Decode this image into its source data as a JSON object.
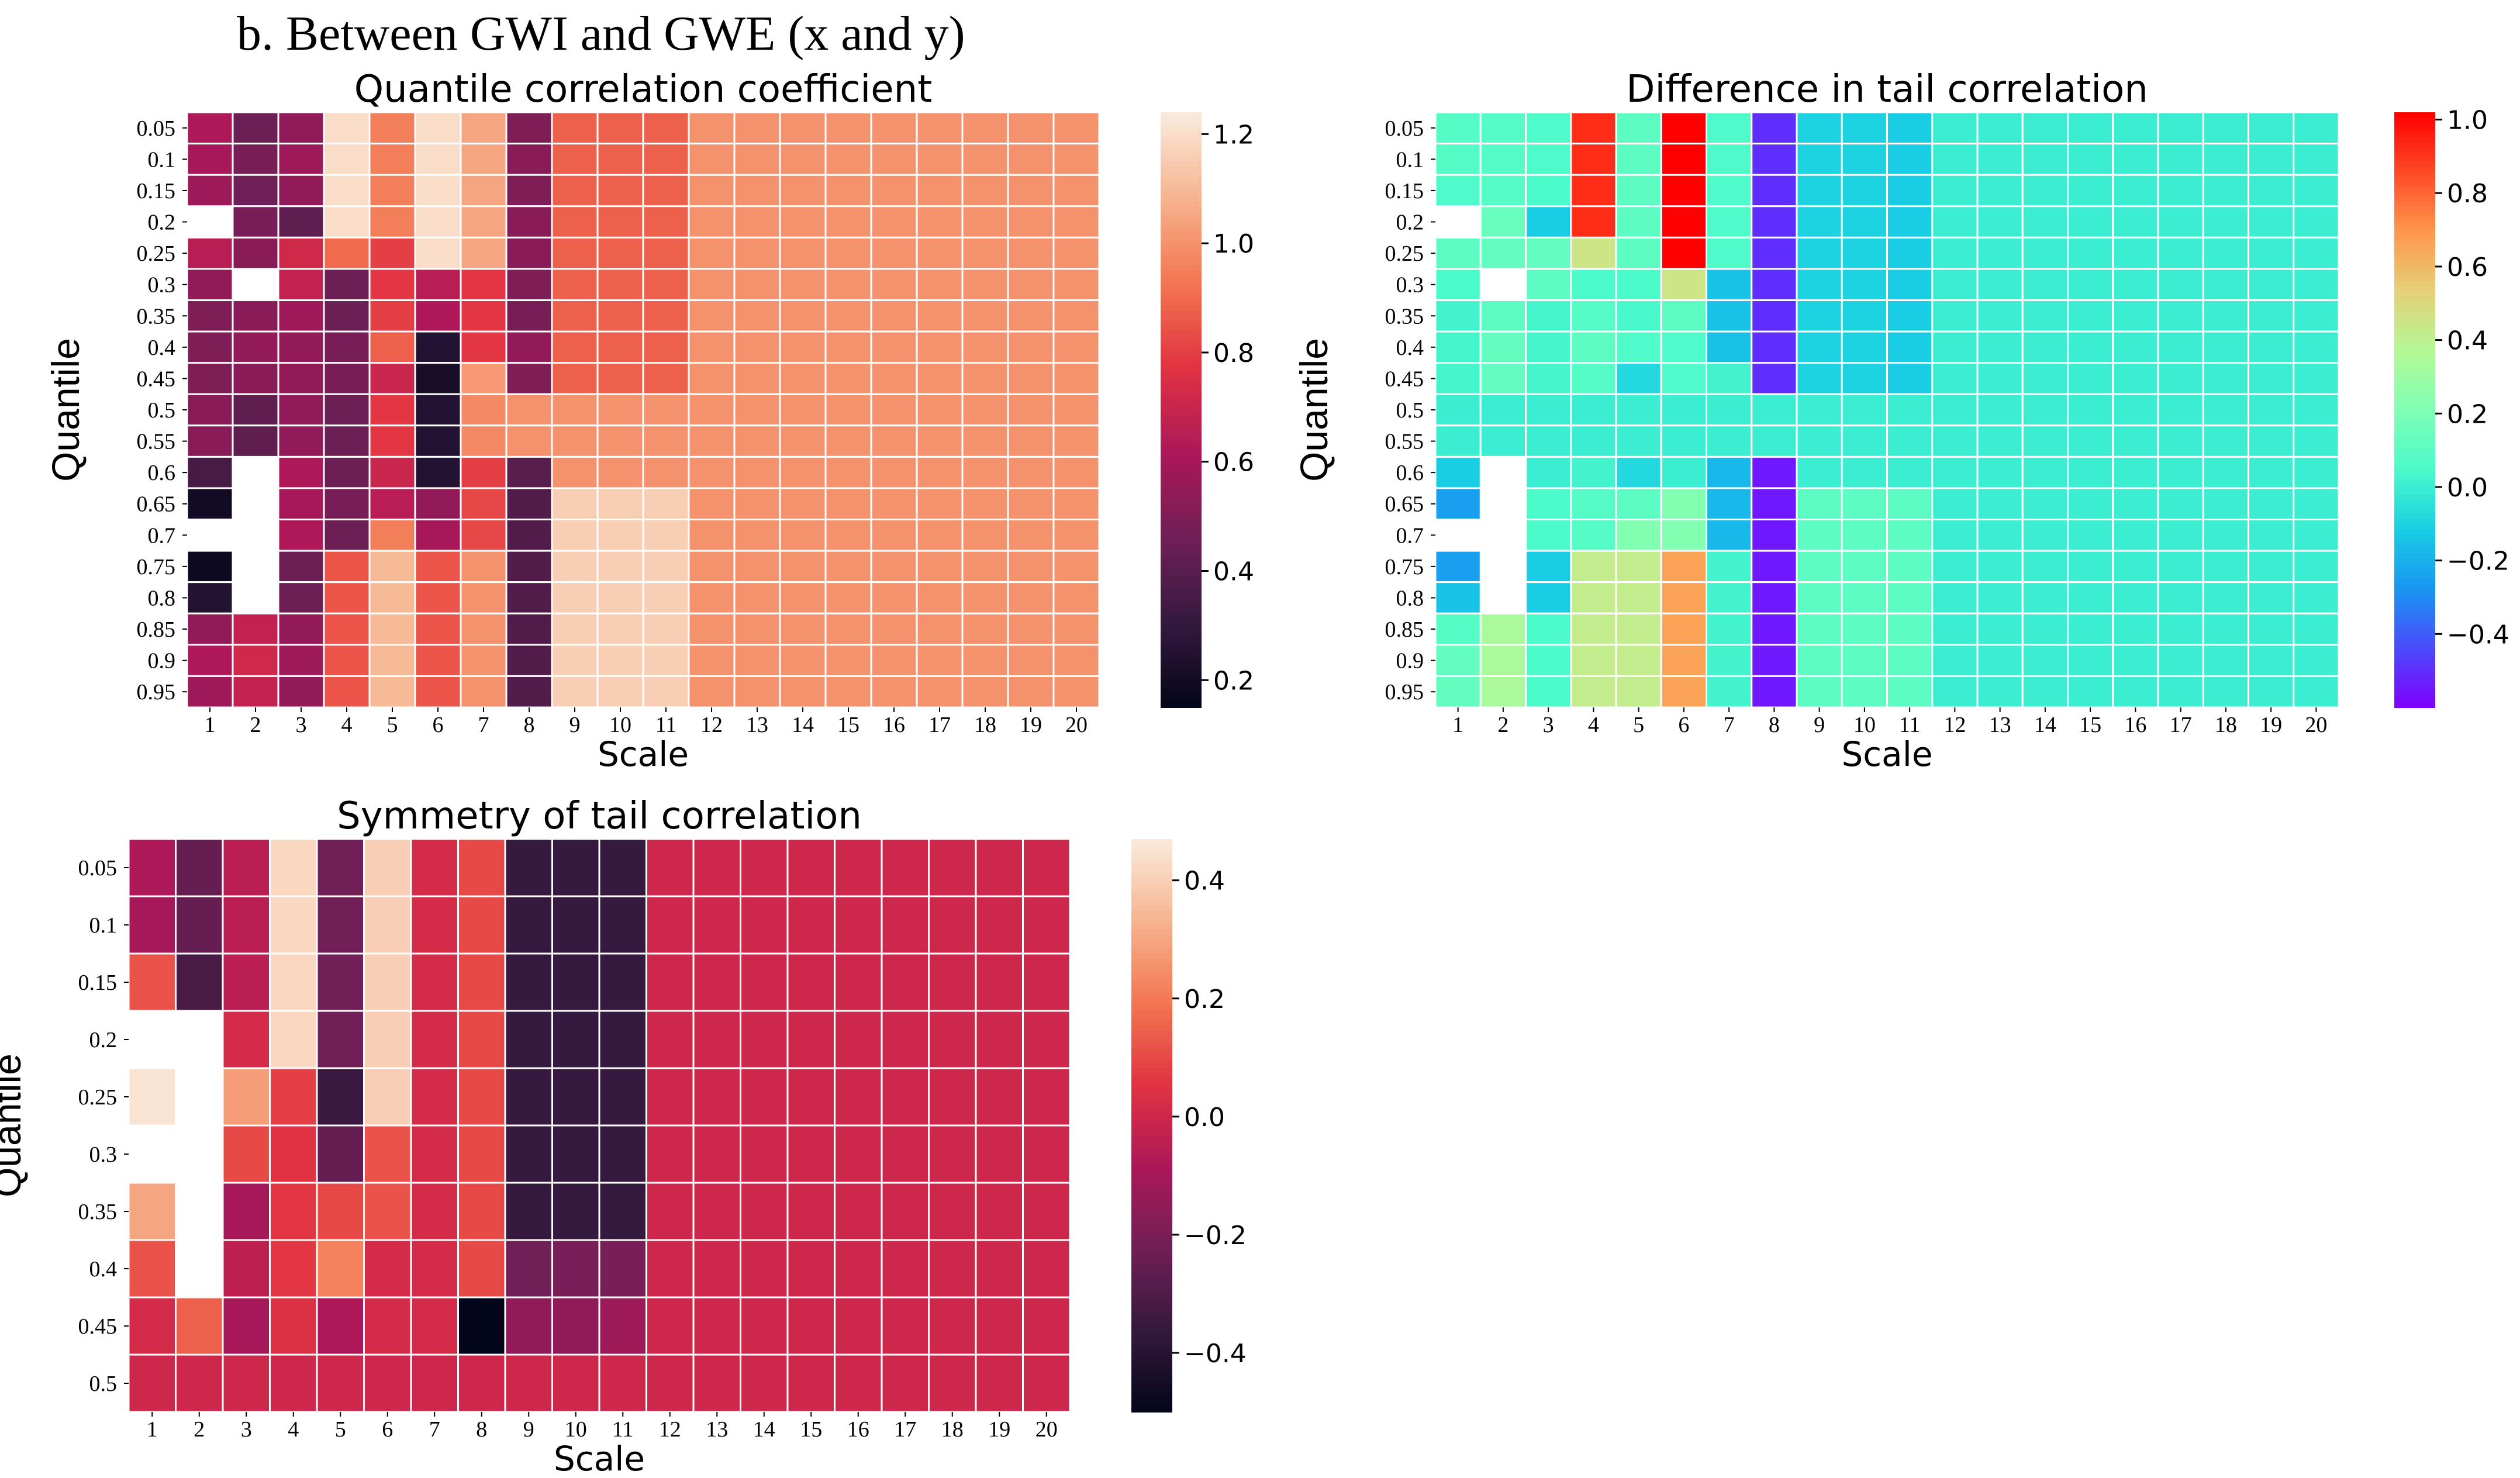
{
  "figure_title": "b. Between GWI and GWE (x and y)",
  "colormaps": {
    "rocket": [
      "#03051a",
      "#35193e",
      "#701f57",
      "#ad1759",
      "#e13342",
      "#f37651",
      "#f6b48f",
      "#faebdd"
    ],
    "rainbow": [
      "#8000ff",
      "#4a4bfc",
      "#1996f3",
      "#19cfe3",
      "#4bfbca",
      "#80ffb4",
      "#b4f995",
      "#e6cf77",
      "#ff964c",
      "#ff4826",
      "#ff0000"
    ]
  },
  "chart_data": [
    {
      "type": "heatmap",
      "title": "Quantile correlation coefficient",
      "xlabel": "Scale",
      "ylabel": "Quantile",
      "x": [
        "1",
        "2",
        "3",
        "4",
        "5",
        "6",
        "7",
        "8",
        "9",
        "10",
        "11",
        "12",
        "13",
        "14",
        "15",
        "16",
        "17",
        "18",
        "19",
        "20"
      ],
      "y": [
        "0.05",
        "0.1",
        "0.15",
        "0.2",
        "0.25",
        "0.3",
        "0.35",
        "0.4",
        "0.45",
        "0.5",
        "0.55",
        "0.6",
        "0.65",
        "0.7",
        "0.75",
        "0.8",
        "0.85",
        "0.9",
        "0.95"
      ],
      "colormap": "rocket",
      "vmin": 0.15,
      "vmax": 1.24,
      "colorbar_ticks": [
        0.2,
        0.4,
        0.6,
        0.8,
        1.0,
        1.2
      ],
      "values": [
        [
          0.62,
          0.45,
          0.55,
          1.2,
          0.95,
          1.2,
          1.05,
          0.5,
          0.88,
          0.88,
          0.88,
          1.0,
          1.0,
          1.0,
          1.0,
          1.0,
          1.0,
          1.0,
          1.0,
          1.0
        ],
        [
          0.6,
          0.48,
          0.58,
          1.2,
          0.95,
          1.2,
          1.05,
          0.52,
          0.88,
          0.88,
          0.88,
          1.0,
          1.0,
          1.0,
          1.0,
          1.0,
          1.0,
          1.0,
          1.0,
          1.0
        ],
        [
          0.58,
          0.46,
          0.55,
          1.2,
          0.95,
          1.2,
          1.05,
          0.5,
          0.88,
          0.88,
          0.88,
          1.0,
          1.0,
          1.0,
          1.0,
          1.0,
          1.0,
          1.0,
          1.0,
          1.0
        ],
        [
          null,
          0.48,
          0.42,
          1.2,
          0.95,
          1.2,
          1.05,
          0.52,
          0.88,
          0.88,
          0.88,
          1.0,
          1.0,
          1.0,
          1.0,
          1.0,
          1.0,
          1.0,
          1.0,
          1.0
        ],
        [
          0.65,
          0.52,
          0.72,
          0.9,
          0.8,
          1.2,
          1.05,
          0.52,
          0.88,
          0.88,
          0.88,
          1.0,
          1.0,
          1.0,
          1.0,
          1.0,
          1.0,
          1.0,
          1.0,
          1.0
        ],
        [
          0.55,
          null,
          0.68,
          0.45,
          0.78,
          0.65,
          0.78,
          0.5,
          0.88,
          0.88,
          0.88,
          1.0,
          1.0,
          1.0,
          1.0,
          1.0,
          1.0,
          1.0,
          1.0,
          1.0
        ],
        [
          0.5,
          0.52,
          0.58,
          0.45,
          0.8,
          0.62,
          0.78,
          0.48,
          0.88,
          0.88,
          0.88,
          1.0,
          1.0,
          1.0,
          1.0,
          1.0,
          1.0,
          1.0,
          1.0,
          1.0
        ],
        [
          0.5,
          0.55,
          0.55,
          0.48,
          0.88,
          0.25,
          0.78,
          0.55,
          0.88,
          0.88,
          0.88,
          1.0,
          1.0,
          1.0,
          1.0,
          1.0,
          1.0,
          1.0,
          1.0,
          1.0
        ],
        [
          0.5,
          0.52,
          0.55,
          0.48,
          0.7,
          0.22,
          1.02,
          0.5,
          0.88,
          0.88,
          0.88,
          1.0,
          1.0,
          1.0,
          1.0,
          1.0,
          1.0,
          1.0,
          1.0,
          1.0
        ],
        [
          0.52,
          0.42,
          0.55,
          0.45,
          0.78,
          0.25,
          0.98,
          1.0,
          1.0,
          1.0,
          1.0,
          1.0,
          1.0,
          1.0,
          1.0,
          1.0,
          1.0,
          1.0,
          1.0,
          1.0
        ],
        [
          0.52,
          0.42,
          0.55,
          0.45,
          0.78,
          0.25,
          0.98,
          1.0,
          1.0,
          1.0,
          1.0,
          1.0,
          1.0,
          1.0,
          1.0,
          1.0,
          1.0,
          1.0,
          1.0,
          1.0
        ],
        [
          0.35,
          null,
          0.62,
          0.45,
          0.7,
          0.25,
          0.8,
          0.4,
          1.0,
          1.0,
          1.0,
          1.0,
          1.0,
          1.0,
          1.0,
          1.0,
          1.0,
          1.0,
          1.0,
          1.0
        ],
        [
          0.2,
          null,
          0.6,
          0.48,
          0.65,
          0.55,
          0.82,
          0.38,
          1.16,
          1.16,
          1.16,
          1.0,
          1.0,
          1.0,
          1.0,
          1.0,
          1.0,
          1.0,
          1.0,
          1.0
        ],
        [
          null,
          null,
          0.62,
          0.45,
          0.95,
          0.6,
          0.82,
          0.38,
          1.16,
          1.16,
          1.16,
          1.0,
          1.0,
          1.0,
          1.0,
          1.0,
          1.0,
          1.0,
          1.0,
          1.0
        ],
        [
          0.18,
          null,
          0.45,
          0.85,
          1.1,
          0.85,
          1.0,
          0.38,
          1.16,
          1.16,
          1.16,
          1.0,
          1.0,
          1.0,
          1.0,
          1.0,
          1.0,
          1.0,
          1.0,
          1.0
        ],
        [
          0.25,
          null,
          0.45,
          0.85,
          1.1,
          0.85,
          1.0,
          0.38,
          1.16,
          1.16,
          1.16,
          1.0,
          1.0,
          1.0,
          1.0,
          1.0,
          1.0,
          1.0,
          1.0,
          1.0
        ],
        [
          0.55,
          0.68,
          0.55,
          0.85,
          1.1,
          0.85,
          1.0,
          0.38,
          1.16,
          1.16,
          1.16,
          1.0,
          1.0,
          1.0,
          1.0,
          1.0,
          1.0,
          1.0,
          1.0,
          1.0
        ],
        [
          0.62,
          0.72,
          0.58,
          0.85,
          1.1,
          0.85,
          1.0,
          0.38,
          1.16,
          1.16,
          1.16,
          1.0,
          1.0,
          1.0,
          1.0,
          1.0,
          1.0,
          1.0,
          1.0,
          1.0
        ],
        [
          0.58,
          0.68,
          0.55,
          0.85,
          1.1,
          0.85,
          1.0,
          0.38,
          1.16,
          1.16,
          1.16,
          1.0,
          1.0,
          1.0,
          1.0,
          1.0,
          1.0,
          1.0,
          1.0,
          1.0
        ]
      ]
    },
    {
      "type": "heatmap",
      "title": "Difference in tail correlation",
      "xlabel": "Scale",
      "ylabel": "Quantile",
      "x": [
        "1",
        "2",
        "3",
        "4",
        "5",
        "6",
        "7",
        "8",
        "9",
        "10",
        "11",
        "12",
        "13",
        "14",
        "15",
        "16",
        "17",
        "18",
        "19",
        "20"
      ],
      "y": [
        "0.05",
        "0.1",
        "0.15",
        "0.2",
        "0.25",
        "0.3",
        "0.35",
        "0.4",
        "0.45",
        "0.5",
        "0.55",
        "0.6",
        "0.65",
        "0.7",
        "0.75",
        "0.8",
        "0.85",
        "0.9",
        "0.95"
      ],
      "colormap": "rainbow",
      "vmin": -0.6,
      "vmax": 1.02,
      "colorbar_ticks": [
        -0.4,
        -0.2,
        0.0,
        0.2,
        0.4,
        0.6,
        0.8,
        1.0
      ],
      "values": [
        [
          0.08,
          0.08,
          0.06,
          0.92,
          0.1,
          1.02,
          0.06,
          -0.5,
          -0.1,
          -0.1,
          -0.12,
          0.0,
          0.0,
          0.0,
          0.0,
          0.0,
          0.0,
          0.0,
          0.0,
          0.0
        ],
        [
          0.08,
          0.08,
          0.06,
          0.92,
          0.1,
          1.02,
          0.06,
          -0.5,
          -0.1,
          -0.1,
          -0.12,
          0.0,
          0.0,
          0.0,
          0.0,
          0.0,
          0.0,
          0.0,
          0.0,
          0.0
        ],
        [
          0.06,
          0.08,
          0.05,
          0.92,
          0.1,
          1.02,
          0.06,
          -0.5,
          -0.1,
          -0.1,
          -0.12,
          0.0,
          0.0,
          0.0,
          0.0,
          0.0,
          0.0,
          0.0,
          0.0,
          0.0
        ],
        [
          null,
          0.14,
          -0.12,
          0.92,
          0.1,
          1.02,
          0.06,
          -0.5,
          -0.1,
          -0.1,
          -0.12,
          0.0,
          0.0,
          0.0,
          0.0,
          0.0,
          0.0,
          0.0,
          0.0,
          0.0
        ],
        [
          0.1,
          0.12,
          0.12,
          0.45,
          0.1,
          1.02,
          0.06,
          -0.5,
          -0.1,
          -0.1,
          -0.12,
          0.0,
          0.0,
          0.0,
          0.0,
          0.0,
          0.0,
          0.0,
          0.0,
          0.0
        ],
        [
          0.05,
          null,
          0.1,
          0.05,
          0.05,
          0.45,
          -0.15,
          -0.5,
          -0.1,
          -0.1,
          -0.12,
          0.0,
          0.0,
          0.0,
          0.0,
          0.0,
          0.0,
          0.0,
          0.0,
          0.0
        ],
        [
          0.02,
          0.1,
          0.03,
          0.08,
          0.04,
          0.1,
          -0.15,
          -0.5,
          -0.1,
          -0.1,
          -0.12,
          0.0,
          0.0,
          0.0,
          0.0,
          0.0,
          0.0,
          0.0,
          0.0,
          0.0
        ],
        [
          0.03,
          0.12,
          0.03,
          0.1,
          0.06,
          0.06,
          -0.15,
          -0.5,
          -0.1,
          -0.1,
          -0.12,
          0.0,
          0.0,
          0.0,
          0.0,
          0.0,
          0.0,
          0.0,
          0.0,
          0.0
        ],
        [
          0.03,
          0.12,
          0.03,
          0.08,
          -0.08,
          0.06,
          0.02,
          -0.5,
          -0.1,
          -0.1,
          -0.12,
          0.0,
          0.0,
          0.0,
          0.0,
          0.0,
          0.0,
          0.0,
          0.0,
          0.0
        ],
        [
          0.0,
          0.0,
          0.0,
          0.0,
          0.0,
          0.0,
          0.0,
          0.0,
          0.0,
          0.0,
          0.0,
          0.0,
          0.0,
          0.0,
          0.0,
          0.0,
          0.0,
          0.0,
          0.0,
          0.0
        ],
        [
          0.0,
          0.0,
          0.0,
          0.0,
          0.0,
          0.0,
          0.0,
          0.0,
          0.0,
          0.0,
          0.0,
          0.0,
          0.0,
          0.0,
          0.0,
          0.0,
          0.0,
          0.0,
          0.0,
          0.0
        ],
        [
          -0.12,
          null,
          0.0,
          0.02,
          -0.08,
          0.0,
          -0.18,
          -0.55,
          0.0,
          0.0,
          0.0,
          0.0,
          0.0,
          0.0,
          0.0,
          0.0,
          0.0,
          0.0,
          0.0,
          0.0
        ],
        [
          -0.25,
          null,
          0.05,
          0.08,
          0.1,
          0.22,
          -0.18,
          -0.55,
          0.1,
          0.1,
          0.1,
          0.0,
          0.0,
          0.0,
          0.0,
          0.0,
          0.0,
          0.0,
          0.0,
          0.0
        ],
        [
          null,
          null,
          0.05,
          0.08,
          0.22,
          0.22,
          -0.18,
          -0.55,
          0.1,
          0.1,
          0.1,
          0.0,
          0.0,
          0.0,
          0.0,
          0.0,
          0.0,
          0.0,
          0.0,
          0.0
        ],
        [
          -0.25,
          null,
          -0.12,
          0.42,
          0.42,
          0.66,
          0.02,
          -0.55,
          0.1,
          0.1,
          0.1,
          0.0,
          0.0,
          0.0,
          0.0,
          0.0,
          0.0,
          0.0,
          0.0,
          0.0
        ],
        [
          -0.15,
          null,
          -0.12,
          0.42,
          0.42,
          0.66,
          0.02,
          -0.55,
          0.1,
          0.1,
          0.1,
          0.0,
          0.0,
          0.0,
          0.0,
          0.0,
          0.0,
          0.0,
          0.0,
          0.0
        ],
        [
          0.08,
          0.34,
          0.05,
          0.42,
          0.42,
          0.66,
          0.02,
          -0.55,
          0.1,
          0.1,
          0.1,
          0.0,
          0.0,
          0.0,
          0.0,
          0.0,
          0.0,
          0.0,
          0.0,
          0.0
        ],
        [
          0.12,
          0.34,
          0.05,
          0.42,
          0.42,
          0.66,
          0.02,
          -0.55,
          0.1,
          0.1,
          0.1,
          0.0,
          0.0,
          0.0,
          0.0,
          0.0,
          0.0,
          0.0,
          0.0,
          0.0
        ],
        [
          0.12,
          0.34,
          0.05,
          0.42,
          0.42,
          0.66,
          0.02,
          -0.55,
          0.1,
          0.1,
          0.1,
          0.0,
          0.0,
          0.0,
          0.0,
          0.0,
          0.0,
          0.0,
          0.0,
          0.0
        ]
      ]
    },
    {
      "type": "heatmap",
      "title": "Symmetry of tail correlation",
      "xlabel": "Scale",
      "ylabel": "Quantile",
      "x": [
        "1",
        "2",
        "3",
        "4",
        "5",
        "6",
        "7",
        "8",
        "9",
        "10",
        "11",
        "12",
        "13",
        "14",
        "15",
        "16",
        "17",
        "18",
        "19",
        "20"
      ],
      "y": [
        "0.05",
        "0.1",
        "0.15",
        "0.2",
        "0.25",
        "0.3",
        "0.35",
        "0.4",
        "0.45",
        "0.5"
      ],
      "colormap": "rocket",
      "vmin": -0.5,
      "vmax": 0.47,
      "colorbar_ticks": [
        -0.4,
        -0.2,
        0.0,
        0.2,
        0.4
      ],
      "values": [
        [
          -0.08,
          -0.25,
          -0.05,
          0.42,
          -0.22,
          0.4,
          0.02,
          0.1,
          -0.36,
          -0.36,
          -0.36,
          0.0,
          0.0,
          0.0,
          0.0,
          0.0,
          0.0,
          0.0,
          0.0,
          0.0
        ],
        [
          -0.1,
          -0.25,
          -0.05,
          0.42,
          -0.22,
          0.4,
          0.02,
          0.1,
          -0.36,
          -0.36,
          -0.36,
          0.0,
          0.0,
          0.0,
          0.0,
          0.0,
          0.0,
          0.0,
          0.0,
          0.0
        ],
        [
          0.12,
          -0.32,
          -0.05,
          0.42,
          -0.22,
          0.4,
          0.02,
          0.1,
          -0.36,
          -0.36,
          -0.36,
          0.0,
          0.0,
          0.0,
          0.0,
          0.0,
          0.0,
          0.0,
          0.0,
          0.0
        ],
        [
          null,
          null,
          0.02,
          0.42,
          -0.22,
          0.4,
          0.02,
          0.1,
          -0.36,
          -0.36,
          -0.36,
          0.0,
          0.0,
          0.0,
          0.0,
          0.0,
          0.0,
          0.0,
          0.0,
          0.0
        ],
        [
          0.45,
          null,
          0.28,
          0.08,
          -0.35,
          0.4,
          0.02,
          0.1,
          -0.36,
          -0.36,
          -0.36,
          0.0,
          0.0,
          0.0,
          0.0,
          0.0,
          0.0,
          0.0,
          0.0,
          0.0
        ],
        [
          null,
          null,
          0.1,
          0.05,
          -0.25,
          0.12,
          0.02,
          0.1,
          -0.36,
          -0.36,
          -0.36,
          0.0,
          0.0,
          0.0,
          0.0,
          0.0,
          0.0,
          0.0,
          0.0,
          0.0
        ],
        [
          0.3,
          null,
          -0.1,
          0.06,
          0.1,
          0.12,
          0.02,
          0.1,
          -0.36,
          -0.36,
          -0.36,
          0.0,
          0.0,
          0.0,
          0.0,
          0.0,
          0.0,
          0.0,
          0.0,
          0.0
        ],
        [
          0.12,
          null,
          -0.04,
          0.06,
          0.22,
          0.02,
          0.02,
          0.1,
          -0.22,
          -0.2,
          -0.2,
          0.0,
          0.0,
          0.0,
          0.0,
          0.0,
          0.0,
          0.0,
          0.0,
          0.0
        ],
        [
          0.02,
          0.15,
          -0.1,
          0.04,
          -0.08,
          0.02,
          0.02,
          -0.5,
          -0.15,
          -0.15,
          -0.12,
          0.0,
          0.0,
          0.0,
          0.0,
          0.0,
          0.0,
          0.0,
          0.0,
          0.0
        ],
        [
          0.0,
          0.0,
          0.0,
          0.0,
          0.0,
          0.0,
          0.0,
          0.0,
          0.0,
          0.0,
          0.0,
          0.0,
          0.0,
          0.0,
          0.0,
          0.0,
          0.0,
          0.0,
          0.0,
          0.0
        ]
      ]
    }
  ]
}
